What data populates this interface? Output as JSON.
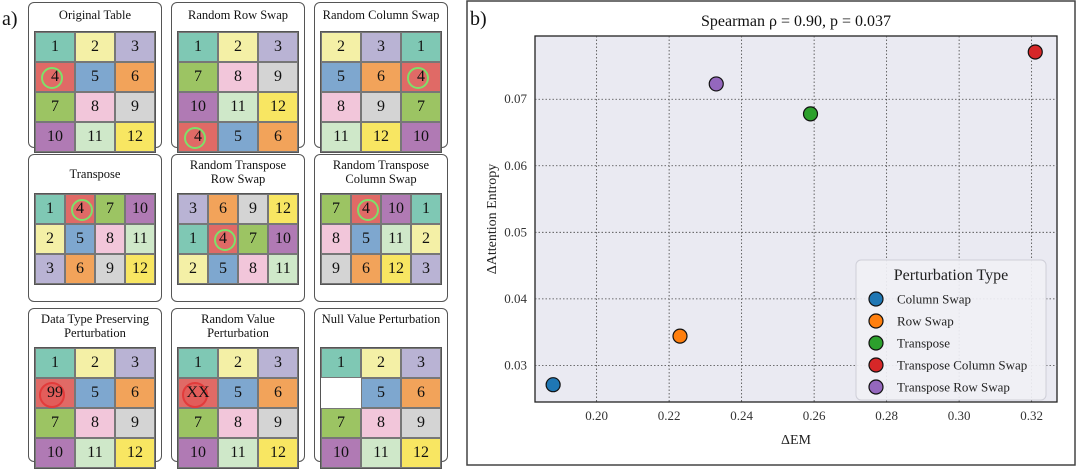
{
  "labels": {
    "a": "a)",
    "b": "b)"
  },
  "colors": {
    "1": "#7fc8b4",
    "2": "#f4f0a6",
    "3": "#b9b3d4",
    "4": "#e06a66",
    "5": "#7ea7cf",
    "6": "#f2a35a",
    "7": "#9cc463",
    "8": "#f2c6da",
    "9": "#d4d4d4",
    "10": "#b07ab4",
    "11": "#cfe8c9",
    "12": "#f8e662",
    "blank": "#ffffff"
  },
  "tables": [
    {
      "title": "Original Table",
      "rows": [
        [
          "1",
          "2",
          "3"
        ],
        [
          "4",
          "5",
          "6"
        ],
        [
          "7",
          "8",
          "9"
        ],
        [
          "10",
          "11",
          "12"
        ]
      ],
      "hl": [
        [
          1,
          0
        ]
      ]
    },
    {
      "title": "Random Row Swap",
      "rows": [
        [
          "1",
          "2",
          "3"
        ],
        [
          "7",
          "8",
          "9"
        ],
        [
          "10",
          "11",
          "12"
        ],
        [
          "4",
          "5",
          "6"
        ]
      ],
      "hl": [
        [
          3,
          0
        ]
      ]
    },
    {
      "title": "Random Column Swap",
      "rows": [
        [
          "2",
          "3",
          "1"
        ],
        [
          "5",
          "6",
          "4"
        ],
        [
          "8",
          "9",
          "7"
        ],
        [
          "11",
          "12",
          "10"
        ]
      ],
      "hl": [
        [
          1,
          2
        ]
      ]
    },
    {
      "title": "Transpose",
      "rows": [
        [
          "1",
          "4",
          "7",
          "10"
        ],
        [
          "2",
          "5",
          "8",
          "11"
        ],
        [
          "3",
          "6",
          "9",
          "12"
        ]
      ],
      "hl": [
        [
          0,
          1
        ]
      ]
    },
    {
      "title": "Random Transpose Row Swap",
      "rows": [
        [
          "3",
          "6",
          "9",
          "12"
        ],
        [
          "1",
          "4",
          "7",
          "10"
        ],
        [
          "2",
          "5",
          "8",
          "11"
        ]
      ],
      "hl": [
        [
          1,
          1
        ]
      ]
    },
    {
      "title": "Random Transpose Column Swap",
      "rows": [
        [
          "7",
          "4",
          "10",
          "1"
        ],
        [
          "8",
          "5",
          "11",
          "2"
        ],
        [
          "9",
          "6",
          "12",
          "3"
        ]
      ],
      "hl": [
        [
          0,
          1
        ]
      ]
    },
    {
      "title": "Data Type Preserving Perturbation",
      "rows": [
        [
          "1",
          "2",
          "3"
        ],
        [
          "99",
          "5",
          "6"
        ],
        [
          "7",
          "8",
          "9"
        ],
        [
          "10",
          "11",
          "12"
        ]
      ],
      "red": [
        [
          1,
          0
        ]
      ]
    },
    {
      "title": "Random Value Perturbation",
      "rows": [
        [
          "1",
          "2",
          "3"
        ],
        [
          "XX",
          "5",
          "6"
        ],
        [
          "7",
          "8",
          "9"
        ],
        [
          "10",
          "11",
          "12"
        ]
      ],
      "red": [
        [
          1,
          0
        ]
      ]
    },
    {
      "title": "Null Value Perturbation",
      "rows": [
        [
          "1",
          "2",
          "3"
        ],
        [
          "",
          "5",
          "6"
        ],
        [
          "7",
          "8",
          "9"
        ],
        [
          "10",
          "11",
          "12"
        ]
      ],
      "blank": [
        [
          1,
          0
        ]
      ]
    }
  ],
  "chart_data": {
    "type": "scatter",
    "title": "Spearman ρ = 0.90, p = 0.037",
    "xlabel": "ΔEM",
    "ylabel": "ΔAttention Entropy",
    "xlim": [
      0.183,
      0.327
    ],
    "ylim": [
      0.0245,
      0.0795
    ],
    "xticks": [
      0.2,
      0.22,
      0.24,
      0.26,
      0.28,
      0.3,
      0.32
    ],
    "yticks": [
      0.03,
      0.04,
      0.05,
      0.06,
      0.07
    ],
    "grid": true,
    "legend_title": "Perturbation Type",
    "legend_position": "bottom-right",
    "points": [
      {
        "name": "Column Swap",
        "x": 0.188,
        "y": 0.0271,
        "color": "#1f77b4"
      },
      {
        "name": "Row Swap",
        "x": 0.223,
        "y": 0.0344,
        "color": "#ff7f0e"
      },
      {
        "name": "Transpose",
        "x": 0.259,
        "y": 0.0678,
        "color": "#2ca02c"
      },
      {
        "name": "Transpose Column Swap",
        "x": 0.321,
        "y": 0.0771,
        "color": "#d62728"
      },
      {
        "name": "Transpose Row Swap",
        "x": 0.233,
        "y": 0.0723,
        "color": "#9467bd"
      }
    ]
  }
}
